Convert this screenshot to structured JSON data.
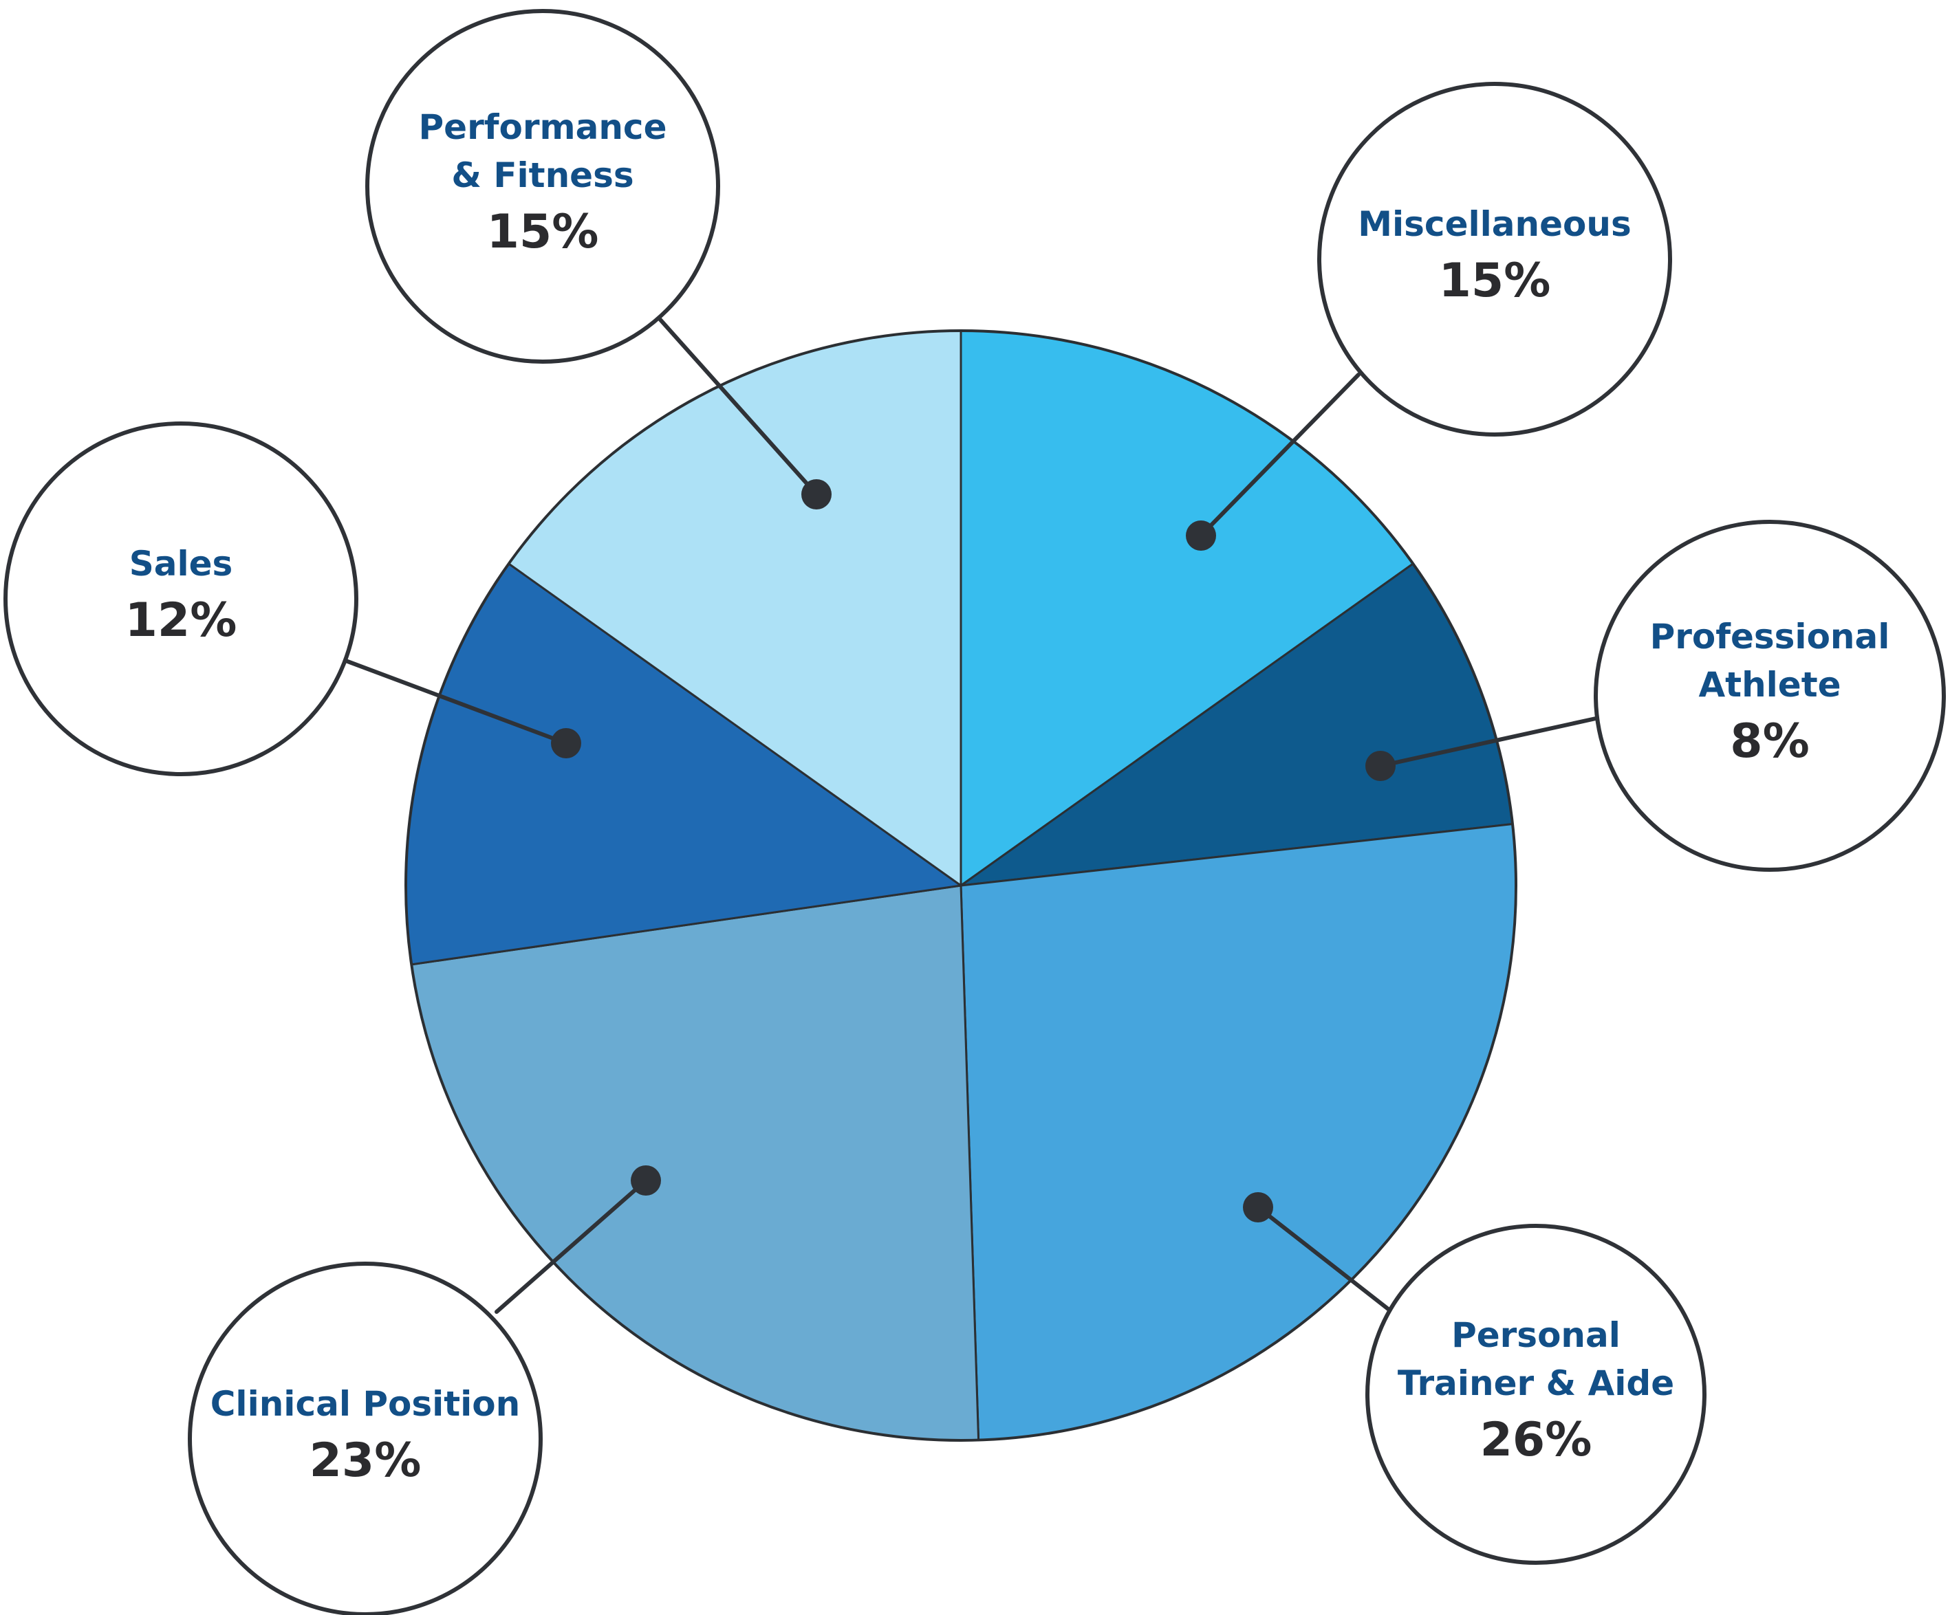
{
  "chart_data": {
    "type": "pie",
    "title": "",
    "unit": "%",
    "start_angle_deg": -90,
    "direction": "clockwise",
    "slices": [
      {
        "name": "Miscellaneous",
        "label_lines": [
          "Miscellaneous"
        ],
        "value": 15,
        "value_label": "15%",
        "color": "#37bdee"
      },
      {
        "name": "Professional Athlete",
        "label_lines": [
          "Professional",
          "Athlete"
        ],
        "value": 8,
        "value_label": "8%",
        "color": "#0e5a8d"
      },
      {
        "name": "Personal Trainer & Aide",
        "label_lines": [
          "Personal",
          "Trainer & Aide"
        ],
        "value": 26,
        "value_label": "26%",
        "color": "#46a5dd"
      },
      {
        "name": "Clinical Position",
        "label_lines": [
          "Clinical Position"
        ],
        "value": 23,
        "value_label": "23%",
        "color": "#6aabd2"
      },
      {
        "name": "Sales",
        "label_lines": [
          "Sales"
        ],
        "value": 12,
        "value_label": "12%",
        "color": "#1f6ab3"
      },
      {
        "name": "Performance & Fitness",
        "label_lines": [
          "Performance",
          "& Fitness"
        ],
        "value": 15,
        "value_label": "15%",
        "color": "#ade1f6"
      }
    ]
  }
}
